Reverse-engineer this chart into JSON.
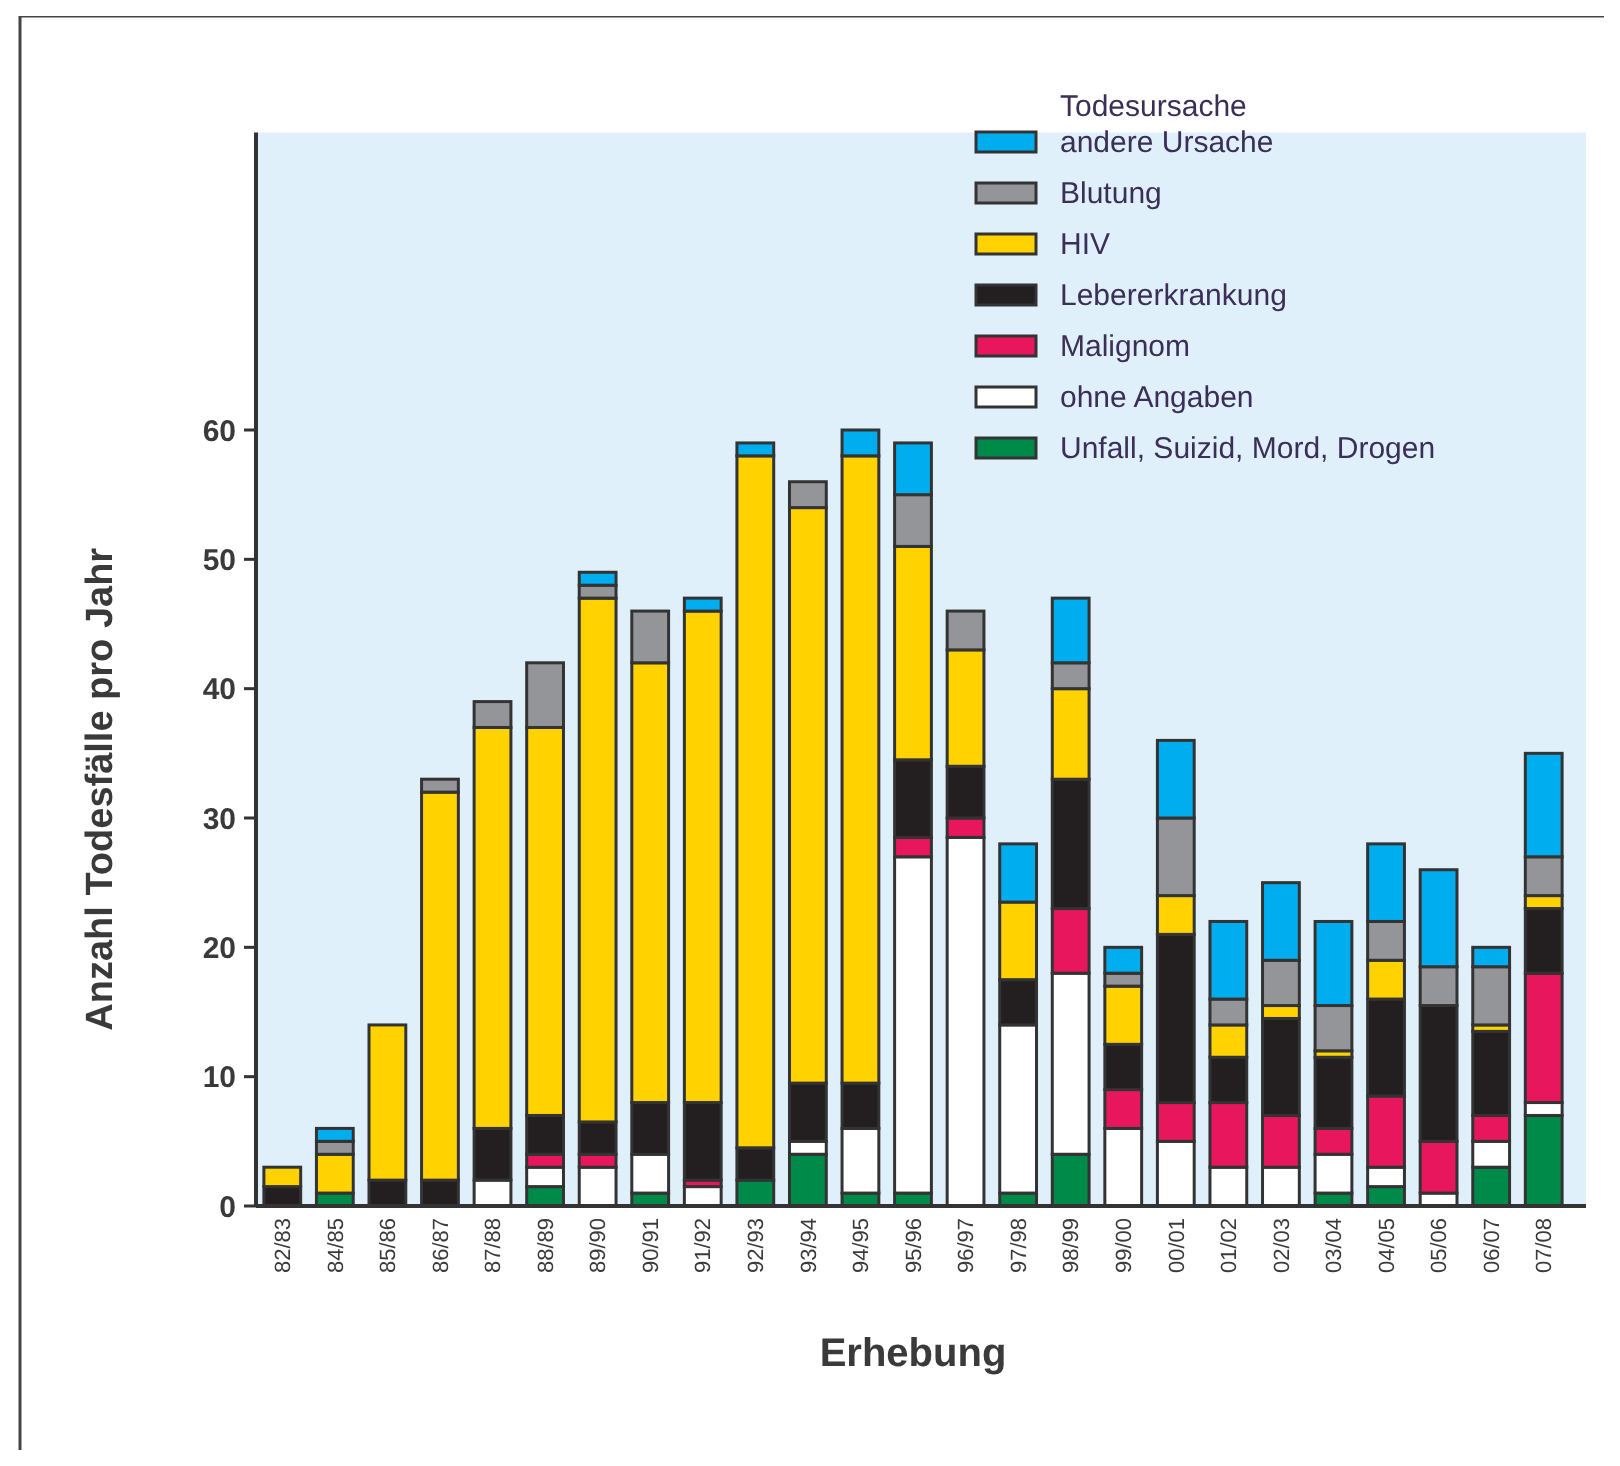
{
  "chart_data": {
    "type": "bar",
    "stacked": true,
    "xlabel": "Erhebung",
    "ylabel": "Anzahl Todesfälle pro Jahr",
    "legend_title": "Todesursache",
    "legend": "top right",
    "grid": false,
    "categories": [
      "82/83",
      "84/85",
      "85/86",
      "86/87",
      "87/88",
      "88/89",
      "89/90",
      "90/91",
      "91/92",
      "92/93",
      "93/94",
      "94/95",
      "95/96",
      "96/97",
      "97/98",
      "98/99",
      "99/00",
      "00/01",
      "01/02",
      "02/03",
      "03/04",
      "04/05",
      "05/06",
      "06/07",
      "07/08"
    ],
    "ylim": [
      0,
      83
    ],
    "yticks": [
      0,
      10,
      20,
      30,
      40,
      50,
      60
    ],
    "series": [
      {
        "name": "Unfall, Suizid, Mord, Drogen",
        "color": "#008a4a",
        "values": [
          0,
          1,
          0,
          0,
          0,
          1.5,
          0,
          1,
          0,
          2,
          4,
          1,
          1,
          0,
          1,
          4,
          0,
          0,
          0,
          0,
          1,
          1.5,
          0,
          3,
          7
        ]
      },
      {
        "name": "ohne Angaben",
        "color": "#ffffff",
        "values": [
          0,
          0,
          0,
          0,
          2,
          1.5,
          3,
          3,
          1.5,
          0,
          1,
          5,
          26,
          28.5,
          13,
          14,
          6,
          5,
          3,
          3,
          3,
          1.5,
          1,
          2,
          1
        ]
      },
      {
        "name": "Malignom",
        "color": "#e8175d",
        "values": [
          0,
          0,
          0,
          0,
          0,
          1,
          1,
          0,
          0.5,
          0,
          0,
          0,
          1.5,
          1.5,
          0,
          5,
          3,
          3,
          5,
          4,
          2,
          5.5,
          4,
          2,
          10
        ]
      },
      {
        "name": "Lebererkrankung",
        "color": "#231f20",
        "values": [
          1.5,
          0,
          2,
          2,
          4,
          3,
          2.5,
          4,
          6,
          2.5,
          4.5,
          3.5,
          6,
          4,
          3.5,
          10,
          3.5,
          13,
          3.5,
          7.5,
          5.5,
          7.5,
          10.5,
          6.5,
          5
        ]
      },
      {
        "name": "HIV",
        "color": "#ffd200",
        "values": [
          1.5,
          3,
          12,
          30,
          31,
          30,
          40.5,
          34,
          38,
          53.5,
          44.5,
          48.5,
          16.5,
          9,
          6,
          7,
          4.5,
          3,
          2.5,
          1,
          0.5,
          3,
          0,
          0.5,
          1
        ]
      },
      {
        "name": "Blutung",
        "color": "#939598",
        "values": [
          0,
          1,
          0,
          1,
          2,
          5,
          1,
          4,
          0,
          0,
          2,
          0,
          4,
          3,
          0,
          2,
          1,
          6,
          2,
          3.5,
          3.5,
          3,
          3,
          4.5,
          3
        ]
      },
      {
        "name": "andere Ursache",
        "color": "#00aeef",
        "values": [
          0,
          1,
          0,
          0,
          0,
          0,
          1,
          0,
          1,
          1,
          0,
          2,
          4,
          0,
          4.5,
          5,
          2,
          6,
          6,
          6,
          6.5,
          6,
          7.5,
          1.5,
          8
        ]
      }
    ]
  }
}
